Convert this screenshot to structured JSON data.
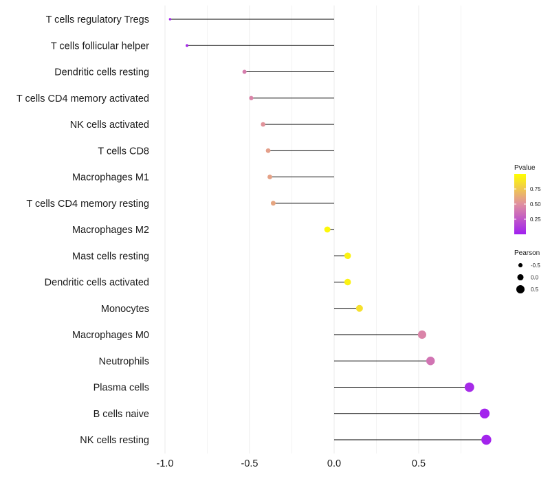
{
  "chart_data": {
    "type": "lollipop",
    "title": "",
    "xlabel": "",
    "ylabel": "",
    "xlim": [
      -1.0,
      0.92
    ],
    "x_ticks": [
      -1.0,
      -0.5,
      0.0,
      0.5
    ],
    "x_tick_labels": [
      "-1.0",
      "-0.5",
      "0.0",
      "0.5"
    ],
    "baseline": 0.0,
    "grid": "vertical",
    "categories": [
      "T cells regulatory  Tregs",
      "T cells follicular helper",
      "Dendritic cells resting",
      "T cells CD4 memory activated",
      "NK cells activated",
      "T cells CD8",
      "Macrophages M1",
      "T cells CD4 memory resting",
      "Macrophages M2",
      "Mast cells resting",
      "Dendritic cells activated",
      "Monocytes",
      "Macrophages M0",
      "Neutrophils",
      "Plasma cells",
      "B cells naive",
      "NK cells resting"
    ],
    "pearson": [
      -0.97,
      -0.87,
      -0.53,
      -0.49,
      -0.42,
      -0.39,
      -0.38,
      -0.36,
      -0.04,
      0.08,
      0.08,
      0.15,
      0.52,
      0.57,
      0.8,
      0.89,
      0.9
    ],
    "pvalue": [
      0.02,
      0.05,
      0.42,
      0.45,
      0.52,
      0.57,
      0.58,
      0.6,
      0.97,
      0.94,
      0.94,
      0.86,
      0.45,
      0.38,
      0.05,
      0.02,
      0.02
    ],
    "color_legend": {
      "title": "Pvalue",
      "range": [
        0.0,
        1.0
      ],
      "ticks": [
        0.25,
        0.5,
        0.75
      ],
      "tick_labels": [
        "0.25",
        "0.50",
        "0.75"
      ],
      "low_color": "#a020f0",
      "mid_color": "#e08fa0",
      "high_color": "#ffff00"
    },
    "size_legend": {
      "title": "Pearson",
      "values": [
        -0.5,
        0.0,
        0.5
      ],
      "labels": [
        "-0.5",
        "0.0",
        "0.5"
      ]
    }
  }
}
